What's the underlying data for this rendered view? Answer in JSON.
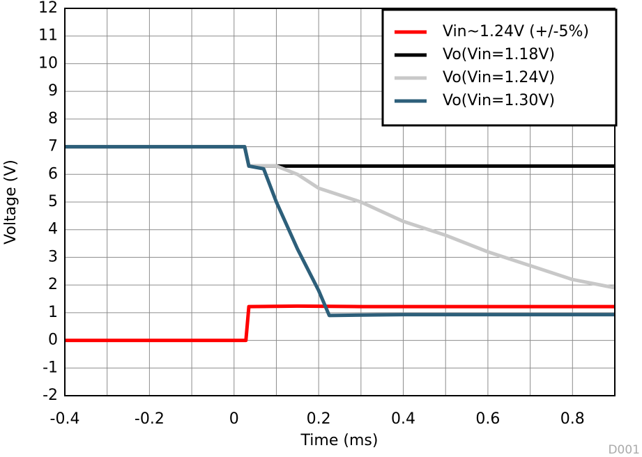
{
  "chart_data": {
    "type": "line",
    "x_label": "Time (ms)",
    "y_label": "Voltage (V)",
    "footnote": "D001",
    "xlim": [
      -0.4,
      0.9
    ],
    "ylim": [
      -2,
      12
    ],
    "xticks": [
      -0.4,
      {
        "value": -0.3,
        "label": null
      },
      -0.2,
      {
        "value": -0.1,
        "label": null
      },
      0,
      {
        "value": 0.1,
        "label": null
      },
      0.2,
      {
        "value": 0.3,
        "label": null
      },
      0.4,
      {
        "value": 0.5,
        "label": null
      },
      0.6,
      {
        "value": 0.7,
        "label": null
      },
      0.8,
      {
        "value": 0.9,
        "label": null
      }
    ],
    "yticks": [
      -2,
      -1,
      0,
      1,
      2,
      3,
      4,
      5,
      6,
      7,
      8,
      9,
      10,
      11,
      12
    ],
    "grid": true,
    "legend": "upper right",
    "series": [
      {
        "name": "Vin~1.24V (+/-5%)",
        "color": "#ff0000",
        "x": [
          -0.4,
          -0.15,
          0.0,
          0.028,
          0.035,
          0.15,
          0.3,
          0.5,
          0.9
        ],
        "values": [
          0,
          0,
          0,
          0,
          1.22,
          1.24,
          1.22,
          1.22,
          1.22
        ]
      },
      {
        "name": "Vo(Vin=1.18V)",
        "color": "#000000",
        "x": [
          -0.4,
          0.025,
          0.035,
          0.3,
          0.6,
          0.9
        ],
        "values": [
          7,
          7,
          6.3,
          6.3,
          6.3,
          6.3
        ]
      },
      {
        "name": "Vo(Vin=1.24V)",
        "color": "#c8c8c8",
        "x": [
          -0.4,
          0.025,
          0.035,
          0.1,
          0.15,
          0.2,
          0.3,
          0.4,
          0.5,
          0.6,
          0.7,
          0.8,
          0.9
        ],
        "values": [
          7,
          7,
          6.3,
          6.3,
          6.0,
          5.5,
          5.0,
          4.3,
          3.8,
          3.2,
          2.7,
          2.2,
          1.9
        ]
      },
      {
        "name": "Vo(Vin=1.30V)",
        "color": "#2d5f7a",
        "x": [
          -0.4,
          0.025,
          0.035,
          0.07,
          0.1,
          0.15,
          0.2,
          0.225,
          0.4,
          0.9
        ],
        "values": [
          7,
          7,
          6.3,
          6.2,
          5.0,
          3.3,
          1.8,
          0.9,
          0.93,
          0.93
        ]
      }
    ]
  }
}
